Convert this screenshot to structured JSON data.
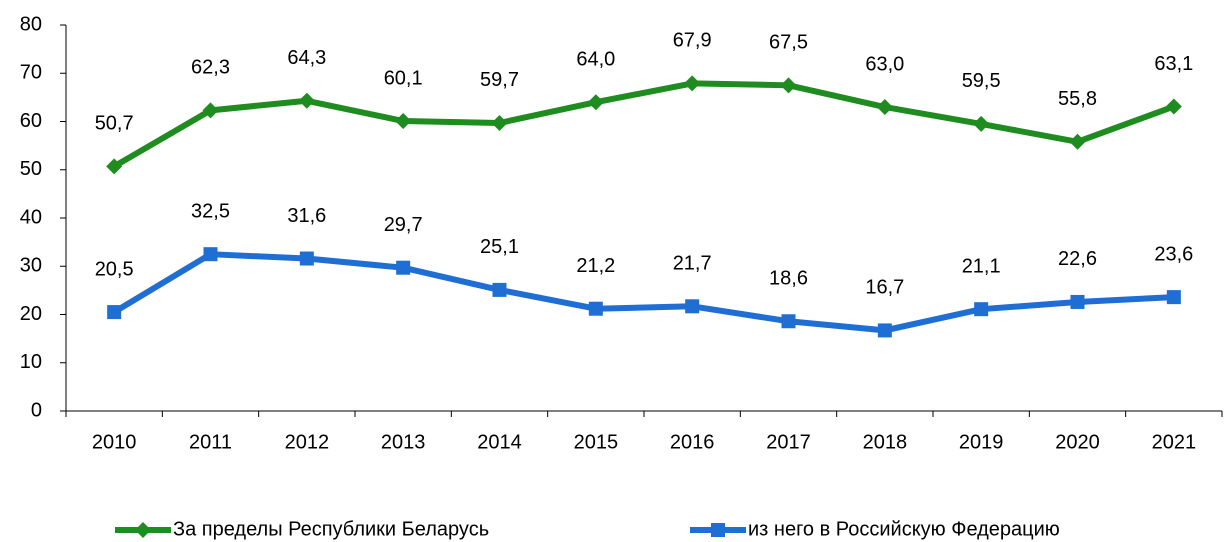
{
  "chart_data": {
    "type": "line",
    "categories": [
      "2010",
      "2011",
      "2012",
      "2013",
      "2014",
      "2015",
      "2016",
      "2017",
      "2018",
      "2019",
      "2020",
      "2021"
    ],
    "series": [
      {
        "name": "За пределы Республики Беларусь",
        "color": "#1e8c1e",
        "marker": "diamond",
        "values": [
          50.7,
          62.3,
          64.3,
          60.1,
          59.7,
          64.0,
          67.9,
          67.5,
          63.0,
          59.5,
          55.8,
          63.1
        ],
        "value_labels": [
          "50,7",
          "62,3",
          "64,3",
          "60,1",
          "59,7",
          "64,0",
          "67,9",
          "67,5",
          "63,0",
          "59,5",
          "55,8",
          "63,1"
        ]
      },
      {
        "name": "из него в Российскую Федерацию",
        "color": "#1f6ed4",
        "marker": "square",
        "values": [
          20.5,
          32.5,
          31.6,
          29.7,
          25.1,
          21.2,
          21.7,
          18.6,
          16.7,
          21.1,
          22.6,
          23.6
        ],
        "value_labels": [
          "20,5",
          "32,5",
          "31,6",
          "29,7",
          "25,1",
          "21,2",
          "21,7",
          "18,6",
          "16,7",
          "21,1",
          "22,6",
          "23,6"
        ]
      }
    ],
    "ylim": [
      0,
      80
    ],
    "yticks": [
      0,
      10,
      20,
      30,
      40,
      50,
      60,
      70,
      80
    ],
    "grid": false,
    "legend": "bottom"
  }
}
